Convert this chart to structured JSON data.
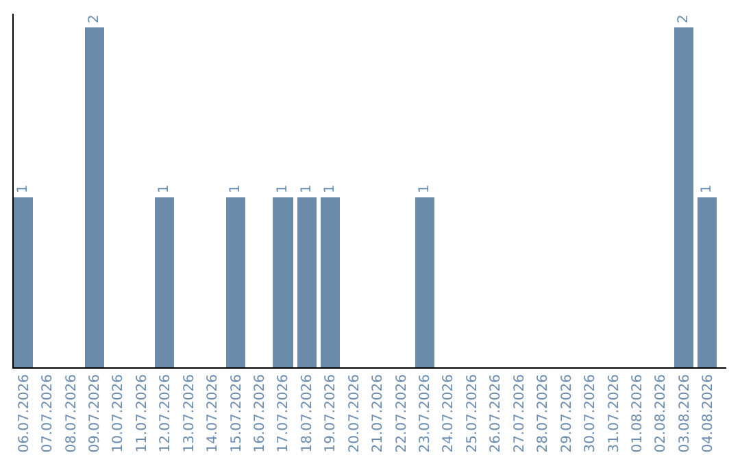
{
  "chart_data": {
    "type": "bar",
    "categories": [
      "06.07.2026",
      "07.07.2026",
      "08.07.2026",
      "09.07.2026",
      "10.07.2026",
      "11.07.2026",
      "12.07.2026",
      "13.07.2026",
      "14.07.2026",
      "15.07.2026",
      "16.07.2026",
      "17.07.2026",
      "18.07.2026",
      "19.07.2026",
      "20.07.2026",
      "21.07.2026",
      "22.07.2026",
      "23.07.2026",
      "24.07.2026",
      "25.07.2026",
      "26.07.2026",
      "27.07.2026",
      "28.07.2026",
      "29.07.2026",
      "30.07.2026",
      "31.07.2026",
      "01.08.2026",
      "02.08.2026",
      "03.08.2026",
      "04.08.2026"
    ],
    "values": [
      1,
      0,
      0,
      2,
      0,
      0,
      1,
      0,
      0,
      1,
      0,
      1,
      1,
      1,
      0,
      0,
      0,
      1,
      0,
      0,
      0,
      0,
      0,
      0,
      0,
      0,
      0,
      0,
      2,
      1
    ],
    "value_labels": [
      "1",
      null,
      null,
      "2",
      null,
      null,
      "1",
      null,
      null,
      "1",
      null,
      "1",
      "1",
      "1",
      null,
      null,
      null,
      "1",
      null,
      null,
      null,
      null,
      null,
      null,
      null,
      null,
      null,
      null,
      "2",
      "1"
    ],
    "color": "#6a8caa",
    "ylim": [
      0,
      2.08
    ],
    "tick_labels": "x"
  }
}
